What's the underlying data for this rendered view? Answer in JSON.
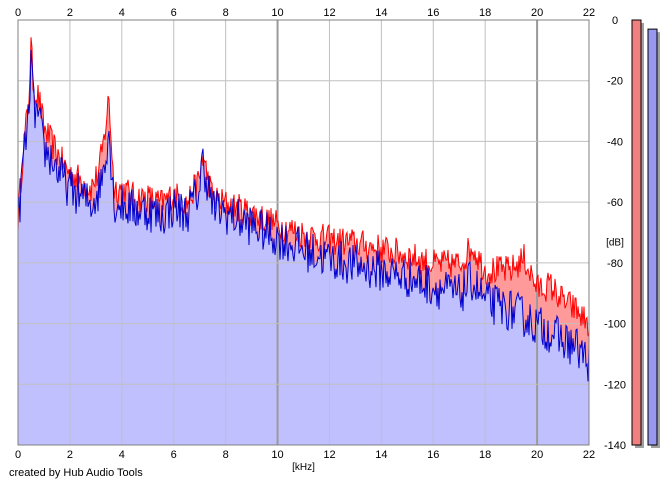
{
  "credit": "created by Hub Audio Tools",
  "colors": {
    "background": "#ffffff",
    "grid": "#c0c0c0",
    "grid_major": "#9a9a9a",
    "left_line": "#ff0000",
    "left_fill": "#ff9a9a",
    "right_line": "#0000cc",
    "right_fill": "#c0c0ff",
    "meter_left": "#f08080",
    "meter_right": "#9898f0",
    "meter_shadow": "#a0a0a0"
  },
  "meters": {
    "left_level_db": 0,
    "right_level_db": -3
  },
  "chart_data": {
    "type": "area",
    "title": "",
    "xlabel": "[kHz]",
    "ylabel": "[dB]",
    "xlim": [
      0,
      22
    ],
    "ylim": [
      -140,
      0
    ],
    "x_ticks": [
      0,
      2,
      4,
      6,
      8,
      10,
      12,
      14,
      16,
      18,
      20,
      22
    ],
    "x_tick_labels": [
      "0",
      "2",
      "4",
      "6",
      "8",
      "10",
      "12",
      "14",
      "16",
      "18",
      "20",
      "22"
    ],
    "y_ticks": [
      0,
      -20,
      -40,
      -60,
      -80,
      -100,
      -120,
      -140
    ],
    "y_tick_labels": [
      "0",
      "-20",
      "-40",
      "-60",
      "-80",
      "-100",
      "-120",
      "-140"
    ],
    "grid": true,
    "series": [
      {
        "key": "left",
        "x": [
          0,
          0.2,
          0.4,
          0.5,
          0.6,
          0.8,
          1.0,
          1.3,
          1.6,
          2.0,
          2.4,
          2.8,
          3.1,
          3.3,
          3.5,
          3.7,
          4.0,
          4.5,
          5.0,
          5.5,
          6.0,
          6.5,
          7.0,
          7.1,
          7.5,
          8.0,
          9.0,
          10.0,
          11.0,
          12.0,
          13.0,
          14.0,
          15.0,
          16.0,
          17.0,
          17.5,
          18.0,
          19.0,
          19.5,
          20.0,
          20.5,
          21.0,
          21.5,
          22.0
        ],
        "y": [
          -65,
          -42,
          -28,
          -8,
          -22,
          -25,
          -35,
          -40,
          -45,
          -50,
          -52,
          -55,
          -50,
          -40,
          -25,
          -55,
          -55,
          -58,
          -58,
          -60,
          -57,
          -60,
          -52,
          -44,
          -58,
          -60,
          -63,
          -67,
          -70,
          -72,
          -73,
          -75,
          -77,
          -80,
          -80,
          -74,
          -82,
          -82,
          -78,
          -88,
          -87,
          -92,
          -95,
          -100
        ]
      },
      {
        "key": "right",
        "x": [
          0,
          0.2,
          0.4,
          0.5,
          0.6,
          0.8,
          1.0,
          1.3,
          1.6,
          2.0,
          2.4,
          2.8,
          3.1,
          3.3,
          3.5,
          3.7,
          4.0,
          4.5,
          5.0,
          5.5,
          6.0,
          6.5,
          7.0,
          7.1,
          7.5,
          8.0,
          9.0,
          10.0,
          11.0,
          12.0,
          13.0,
          14.0,
          15.0,
          16.0,
          17.0,
          17.5,
          18.0,
          19.0,
          19.5,
          20.0,
          20.5,
          21.0,
          21.5,
          22.0
        ],
        "y": [
          -68,
          -45,
          -33,
          -12,
          -28,
          -32,
          -42,
          -45,
          -50,
          -55,
          -57,
          -60,
          -56,
          -48,
          -35,
          -60,
          -60,
          -62,
          -62,
          -64,
          -61,
          -63,
          -55,
          -45,
          -61,
          -63,
          -67,
          -71,
          -75,
          -78,
          -80,
          -82,
          -84,
          -87,
          -90,
          -85,
          -92,
          -95,
          -97,
          -100,
          -102,
          -105,
          -107,
          -112
        ]
      }
    ]
  }
}
